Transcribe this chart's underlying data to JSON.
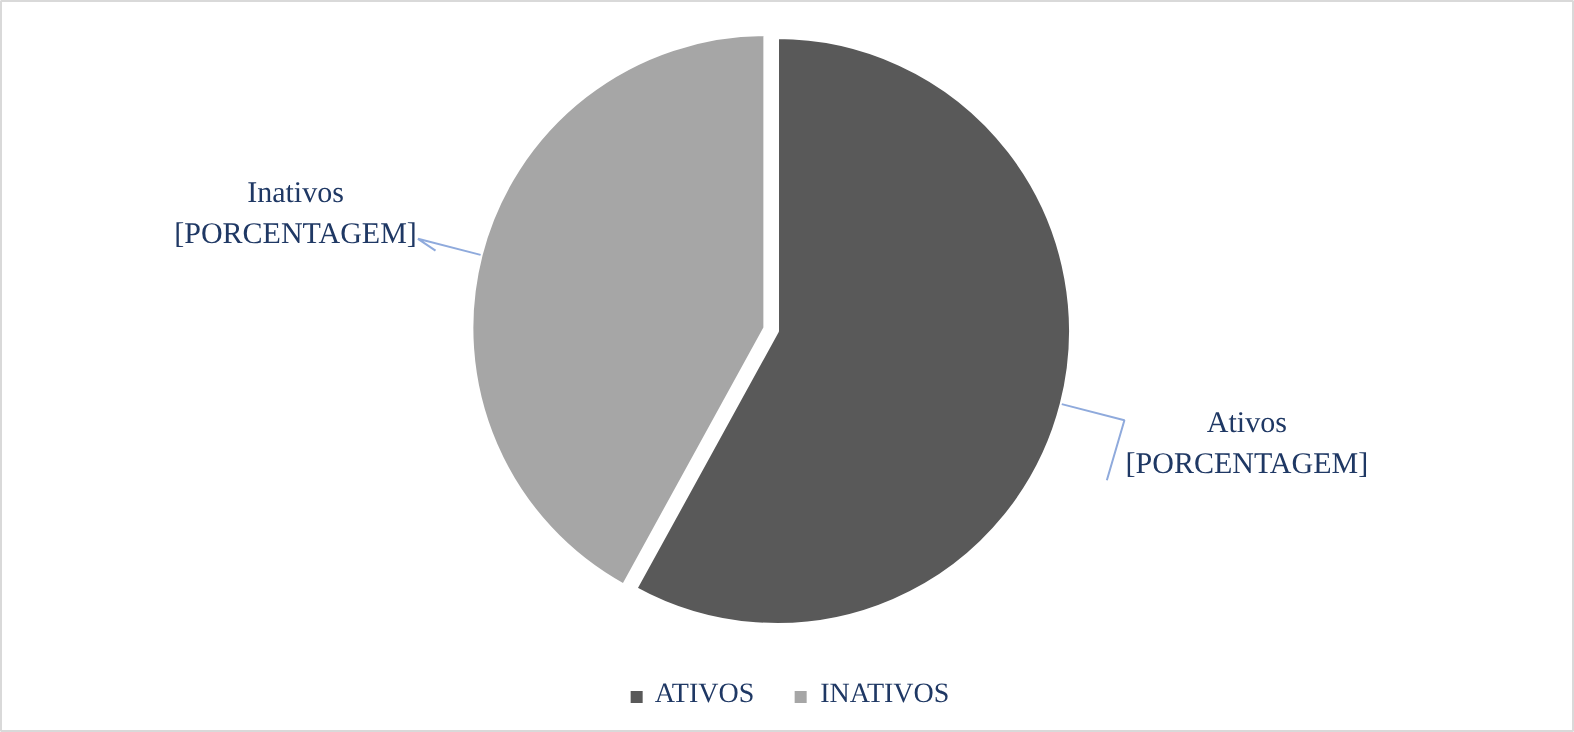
{
  "chart_data": {
    "type": "pie",
    "categories": [
      "ATIVOS",
      "INATIVOS"
    ],
    "values": [
      58,
      42
    ],
    "colors": [
      "#595959",
      "#a6a6a6"
    ],
    "value_labels": [
      "Ativos\n[PORCENTAGEM]",
      "Inativos\n[PORCENTAGEM]"
    ],
    "legend": "bottom"
  }
}
